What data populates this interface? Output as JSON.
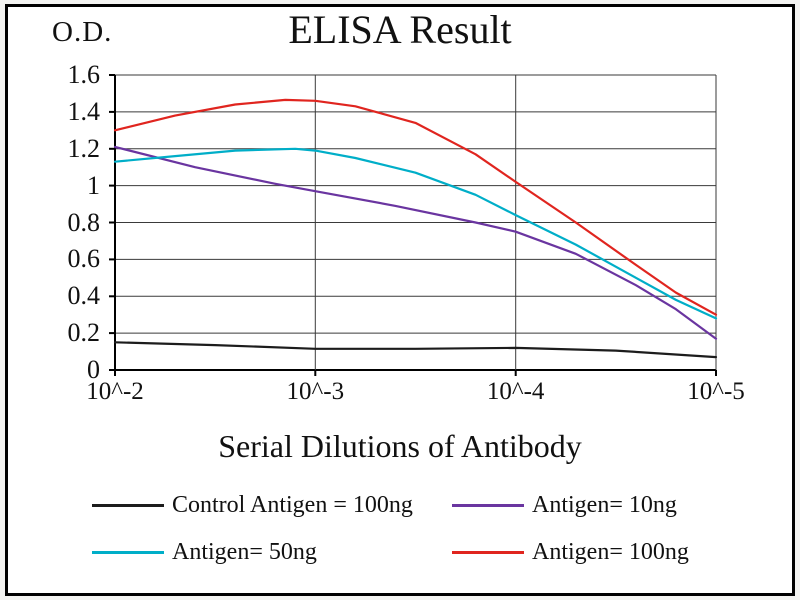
{
  "chart_data": {
    "type": "line",
    "title": "ELISA Result",
    "ylabel": "O.D.",
    "xlabel": "Serial Dilutions of Antibody",
    "x_tick_labels": [
      "10^-2",
      "10^-3",
      "10^-4",
      "10^-5"
    ],
    "y_ticks": [
      0,
      0.2,
      0.4,
      0.6,
      0.8,
      1,
      1.2,
      1.4,
      1.6
    ],
    "ylim": [
      0,
      1.6
    ],
    "grid": true,
    "legend_position": "bottom",
    "grid_color": "#3a3a3a",
    "series": [
      {
        "id": "control-antigen-100ng",
        "name": "Control Antigen = 100ng",
        "color": "#1c1c1c",
        "points": [
          [
            0,
            0.15
          ],
          [
            0.5,
            0.135
          ],
          [
            1,
            0.115
          ],
          [
            1.5,
            0.115
          ],
          [
            2,
            0.12
          ],
          [
            2.5,
            0.105
          ],
          [
            3,
            0.07
          ]
        ]
      },
      {
        "id": "antigen-10ng",
        "name": "Antigen= 10ng",
        "color": "#6a35a0",
        "points": [
          [
            0,
            1.21
          ],
          [
            0.4,
            1.1
          ],
          [
            0.8,
            1.01
          ],
          [
            1,
            0.97
          ],
          [
            1.4,
            0.89
          ],
          [
            1.8,
            0.8
          ],
          [
            2,
            0.75
          ],
          [
            2.3,
            0.63
          ],
          [
            2.6,
            0.46
          ],
          [
            2.8,
            0.33
          ],
          [
            3,
            0.17
          ]
        ]
      },
      {
        "id": "antigen-50ng",
        "name": "Antigen= 50ng",
        "color": "#00aec8",
        "points": [
          [
            0,
            1.13
          ],
          [
            0.3,
            1.16
          ],
          [
            0.6,
            1.19
          ],
          [
            0.9,
            1.2
          ],
          [
            1,
            1.19
          ],
          [
            1.2,
            1.15
          ],
          [
            1.5,
            1.07
          ],
          [
            1.8,
            0.95
          ],
          [
            2,
            0.84
          ],
          [
            2.3,
            0.68
          ],
          [
            2.6,
            0.5
          ],
          [
            2.8,
            0.38
          ],
          [
            3,
            0.28
          ]
        ]
      },
      {
        "id": "antigen-100ng",
        "name": "Antigen= 100ng",
        "color": "#e0251f",
        "points": [
          [
            0,
            1.3
          ],
          [
            0.3,
            1.38
          ],
          [
            0.6,
            1.44
          ],
          [
            0.85,
            1.465
          ],
          [
            1,
            1.46
          ],
          [
            1.2,
            1.43
          ],
          [
            1.5,
            1.34
          ],
          [
            1.8,
            1.17
          ],
          [
            2,
            1.02
          ],
          [
            2.3,
            0.8
          ],
          [
            2.6,
            0.57
          ],
          [
            2.8,
            0.42
          ],
          [
            3,
            0.3
          ]
        ]
      }
    ]
  }
}
